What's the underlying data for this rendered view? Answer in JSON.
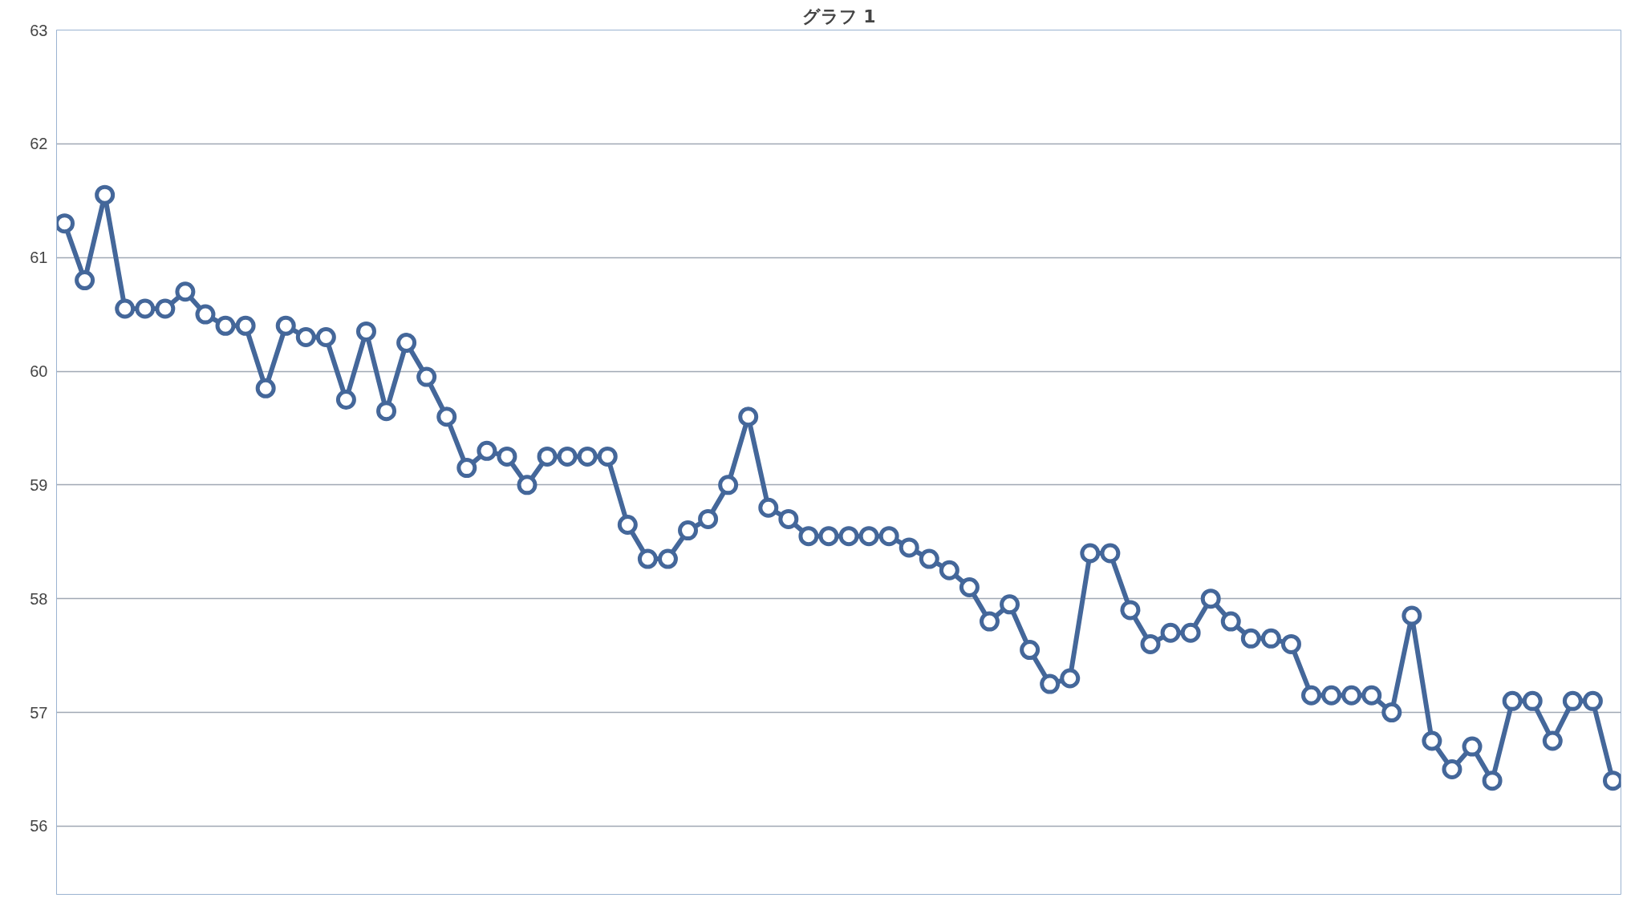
{
  "chart_data": {
    "type": "line",
    "title": "グラフ 1",
    "categories": [
      null,
      null,
      null,
      null,
      null,
      null,
      null,
      null,
      null,
      null,
      null,
      null,
      null,
      null,
      null,
      null,
      null,
      null,
      null,
      null,
      null,
      null,
      null,
      null,
      null,
      null,
      null,
      null,
      null,
      null,
      null,
      null,
      null,
      null,
      null,
      null,
      null,
      null,
      null,
      null,
      null,
      null,
      null,
      null,
      null,
      null,
      null,
      null,
      null,
      null,
      null,
      null,
      null,
      null,
      null,
      null,
      null,
      null,
      null,
      null,
      null,
      null,
      null,
      null,
      null,
      null,
      null,
      null,
      null,
      null,
      null,
      null,
      null,
      null,
      null,
      null,
      null,
      null
    ],
    "series": [
      {
        "color": "#44679a",
        "values": [
          61.3,
          60.8,
          61.55,
          60.55,
          60.55,
          60.55,
          60.7,
          60.5,
          60.4,
          60.4,
          59.85,
          60.4,
          60.3,
          60.3,
          59.75,
          60.35,
          59.65,
          60.25,
          59.95,
          59.6,
          59.15,
          59.3,
          59.25,
          59.0,
          59.25,
          59.25,
          59.25,
          59.25,
          58.65,
          58.35,
          58.35,
          58.6,
          58.7,
          59.0,
          59.6,
          58.8,
          58.7,
          58.55,
          58.55,
          58.55,
          58.55,
          58.55,
          58.45,
          58.35,
          58.25,
          58.1,
          57.8,
          57.95,
          57.55,
          57.25,
          57.3,
          58.4,
          58.4,
          57.9,
          57.6,
          57.7,
          57.7,
          58.0,
          57.8,
          57.65,
          57.65,
          57.6,
          57.15,
          57.15,
          57.15,
          57.15,
          57.0,
          57.85,
          56.75,
          56.5,
          56.7,
          56.4,
          57.1,
          57.1,
          56.75,
          57.1,
          57.1,
          56.4
        ]
      }
    ],
    "ylim": [
      55.4,
      63
    ],
    "yticks": [
      56,
      57,
      58,
      59,
      60,
      61,
      62,
      63
    ],
    "grid": "y",
    "marker": "circle",
    "line_style": "solid",
    "tick_labels": "y"
  }
}
